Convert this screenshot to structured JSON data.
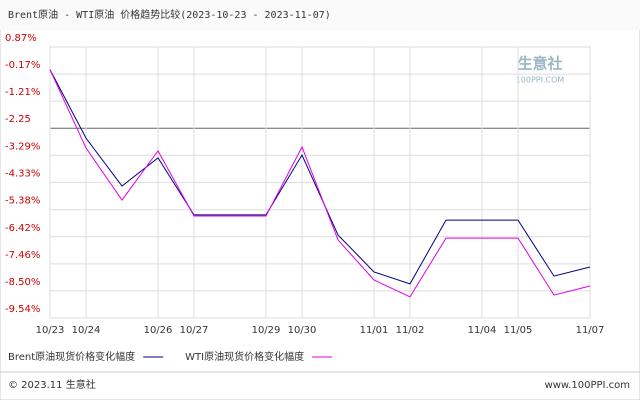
{
  "chart_data": {
    "type": "line",
    "title": "Brent原油 - WTI原油 价格趋势比较(2023-10-23 - 2023-11-07)",
    "categories": [
      "10/23",
      "10/24",
      null,
      "10/26",
      "10/27",
      null,
      "10/29",
      "10/30",
      null,
      "11/01",
      "11/02",
      null,
      "11/04",
      "11/05",
      null,
      "11/07"
    ],
    "series": [
      {
        "name": "Brent原油现货价格变化幅度",
        "color": "#000080",
        "values": [
          0,
          -2.63,
          -4.47,
          -3.39,
          -5.58,
          -5.58,
          -5.58,
          -3.28,
          -6.35,
          -7.77,
          -8.23,
          -5.78,
          -5.78,
          -5.78,
          -7.93,
          -7.58
        ]
      },
      {
        "name": "WTI原油现货价格变化幅度",
        "color": "#e000e0",
        "values": [
          0,
          -3.01,
          -5.01,
          -3.12,
          -5.62,
          -5.62,
          -5.62,
          -2.97,
          -6.54,
          -8.08,
          -8.73,
          -6.47,
          -6.47,
          -6.47,
          -8.66,
          -8.31
        ]
      }
    ],
    "ylim": [
      -9.54,
      0.87
    ],
    "yticks": [
      {
        "value": 0.87,
        "label": "0.87%"
      },
      {
        "value": -0.17,
        "label": "-0.17%"
      },
      {
        "value": -1.21,
        "label": "-1.21%"
      },
      -2.25,
      {
        "value": -3.29,
        "label": "-3.29%"
      },
      {
        "value": -4.33,
        "label": "-4.33%"
      },
      {
        "value": -5.38,
        "label": "-5.38%"
      },
      {
        "value": -6.42,
        "label": "-6.42%"
      },
      {
        "value": -7.46,
        "label": "-7.46%"
      },
      {
        "value": -8.5,
        "label": "-8.50%"
      },
      {
        "value": -9.54,
        "label": "-9.54%"
      }
    ],
    "grid": true,
    "legend": "bottom",
    "watermark": [
      "生意社",
      "100PPI.COM"
    ],
    "copyright": "© 2023.11 生意社",
    "source": "www.100PPI.com"
  }
}
